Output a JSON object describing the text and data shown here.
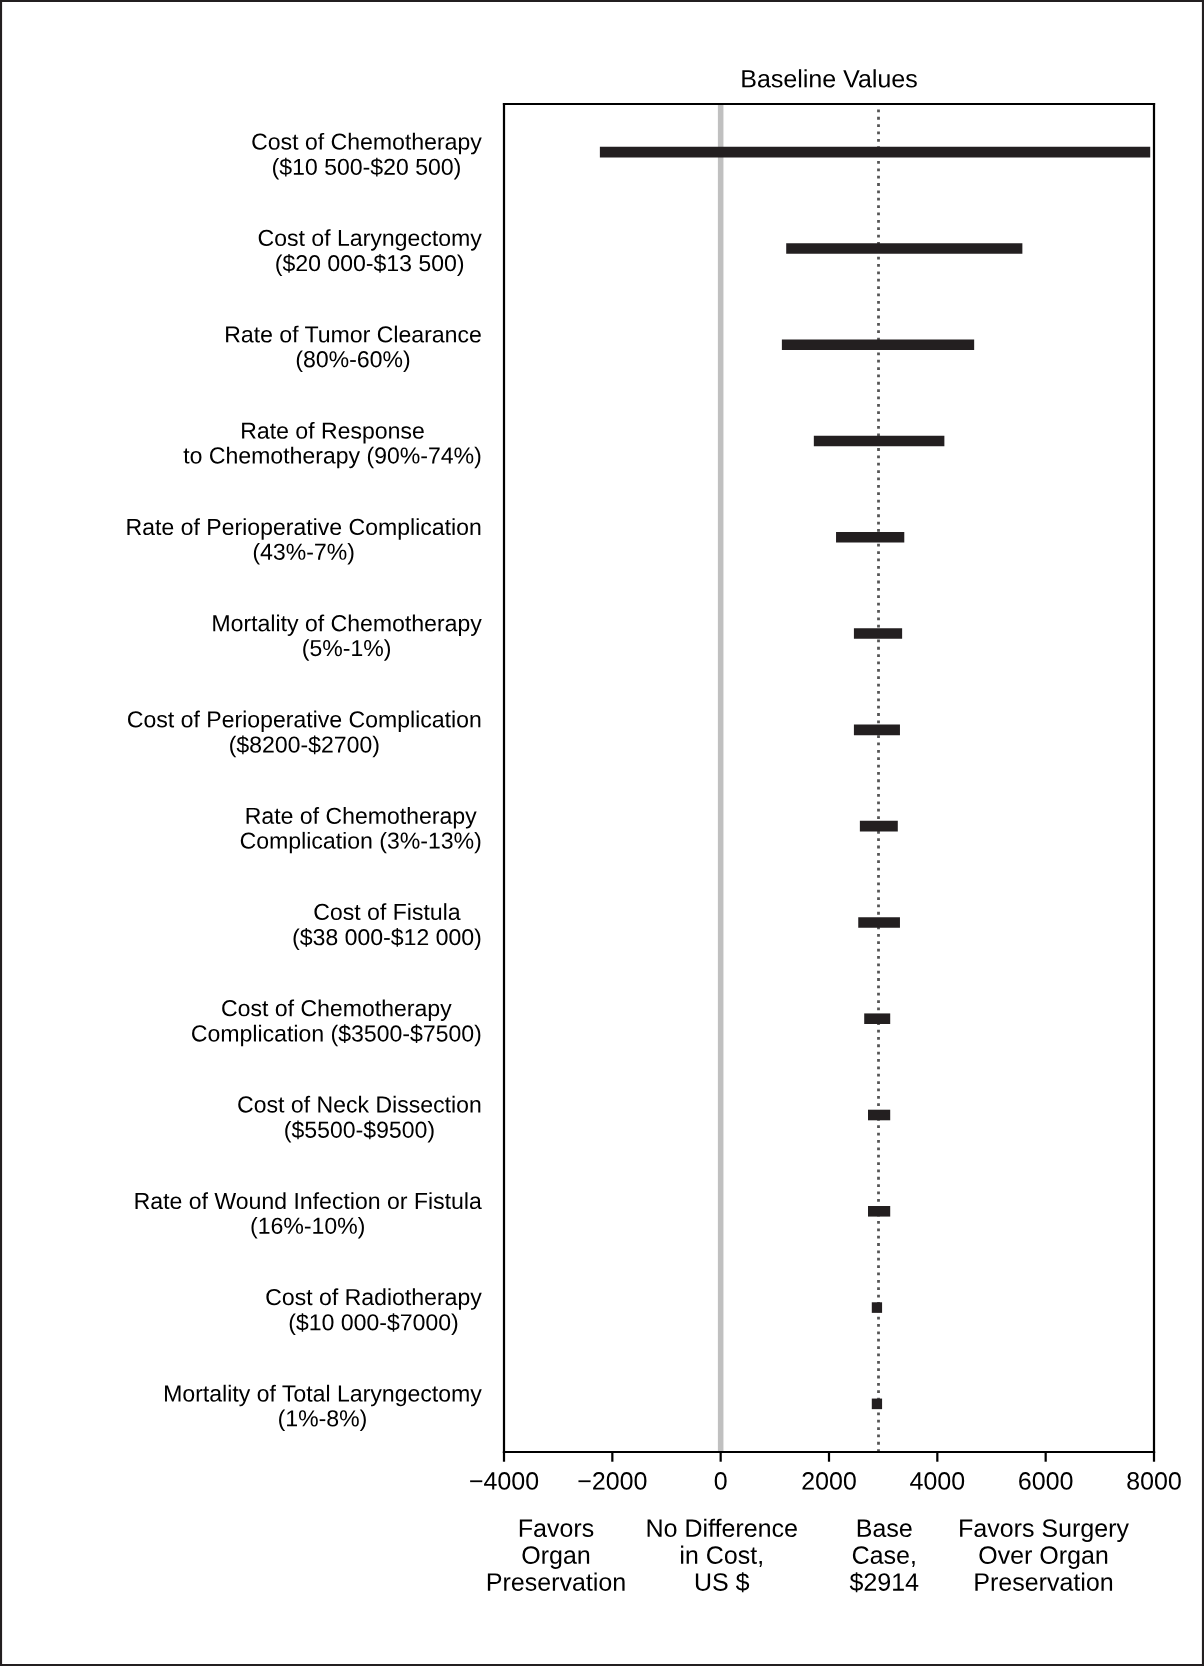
{
  "chart_data": {
    "type": "bar",
    "orientation": "horizontal",
    "title": "Baseline Values",
    "categories": [
      "Cost of Chemotherapy\n($10 500-$20 500)",
      "Cost of Laryngectomy\n($20 000-$13 500)",
      "Rate of Tumor Clearance\n(80%-60%)",
      "Rate of Response\nto Chemotherapy (90%-74%)",
      "Rate of Perioperative Complication\n(43%-7%)",
      "Mortality of Chemotherapy\n(5%-1%)",
      "Cost of Perioperative Complication\n($8200-$2700)",
      "Rate of Chemotherapy\nComplication (3%-13%)",
      "Cost of Fistula\n($38 000-$12 000)",
      "Cost of Chemotherapy\nComplication ($3500-$7500)",
      "Cost of Neck Dissection\n($5500-$9500)",
      "Rate of Wound Infection or Fistula\n(16%-10%)",
      "Cost of Radiotherapy\n($10 000-$7000)",
      "Mortality of Total Laryngectomy\n(1%-8%)"
    ],
    "base": [
      -2230,
      1210,
      1130,
      1720,
      2130,
      2460,
      2460,
      2570,
      2540,
      2650,
      2720,
      2720,
      2790,
      2790
    ],
    "values": [
      10160,
      4360,
      3550,
      2410,
      1260,
      890,
      850,
      700,
      770,
      480,
      410,
      410,
      190,
      190
    ],
    "color": "#231f20",
    "xlim": [
      -4000,
      8000
    ],
    "xticks": [
      {
        "value": -4000,
        "label": "−4000"
      },
      {
        "value": -2000,
        "label": "−2000"
      },
      0,
      2000,
      4000,
      6000,
      8000
    ],
    "ref_lines": [
      {
        "axis": "x",
        "value": 0,
        "color": "#c0c0c0",
        "line_style": "solid"
      },
      {
        "axis": "x",
        "value": 2914,
        "color": "#555555",
        "line_style": "dotted"
      }
    ],
    "annotations": [
      "Favors\nOrgan\nPreservation",
      "No Difference\nin Cost,\nUS $",
      "Base\nCase,\n$2914",
      "Favors Surgery\nOver Organ\nPreservation"
    ],
    "grid": false,
    "legend": false
  }
}
